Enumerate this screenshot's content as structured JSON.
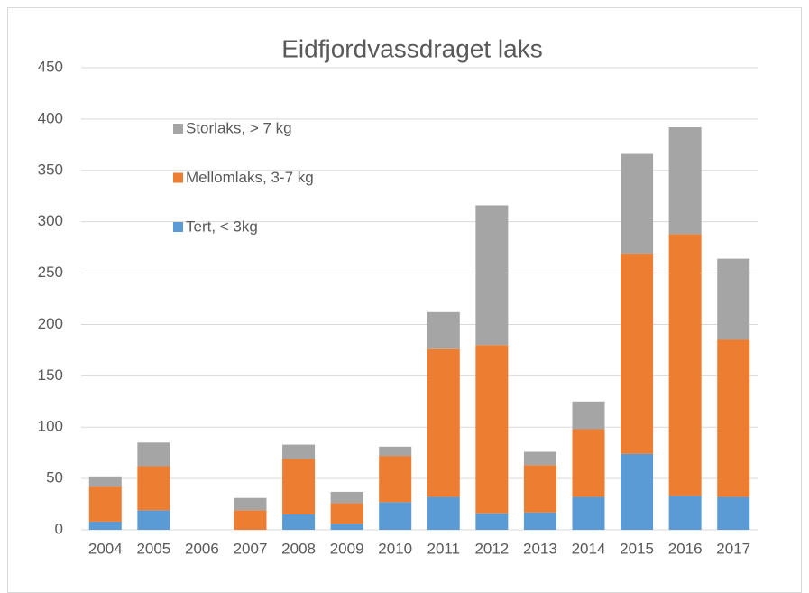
{
  "chart_data": {
    "type": "stacked_bar",
    "title": "Eidfjordvassdraget laks",
    "categories": [
      "2004",
      "2005",
      "2006",
      "2007",
      "2008",
      "2009",
      "2010",
      "2011",
      "2012",
      "2013",
      "2014",
      "2015",
      "2016",
      "2017"
    ],
    "series": [
      {
        "name": "Tert, < 3kg",
        "color": "#5b9bd5",
        "values": [
          8,
          19,
          0,
          0,
          15,
          6,
          27,
          32,
          16,
          17,
          32,
          74,
          33,
          32
        ]
      },
      {
        "name": "Mellomlaks, 3-7 kg",
        "color": "#ed7d31",
        "values": [
          34,
          43,
          0,
          19,
          54,
          20,
          45,
          144,
          164,
          46,
          66,
          195,
          255,
          153
        ]
      },
      {
        "name": "Storlaks, > 7 kg",
        "color": "#a5a5a5",
        "values": [
          10,
          23,
          0,
          12,
          14,
          11,
          9,
          36,
          136,
          13,
          27,
          97,
          104,
          79
        ]
      }
    ],
    "ylim": [
      0,
      450
    ],
    "yticks": [
      0,
      50,
      100,
      150,
      200,
      250,
      300,
      350,
      400,
      450
    ],
    "grid": true
  }
}
